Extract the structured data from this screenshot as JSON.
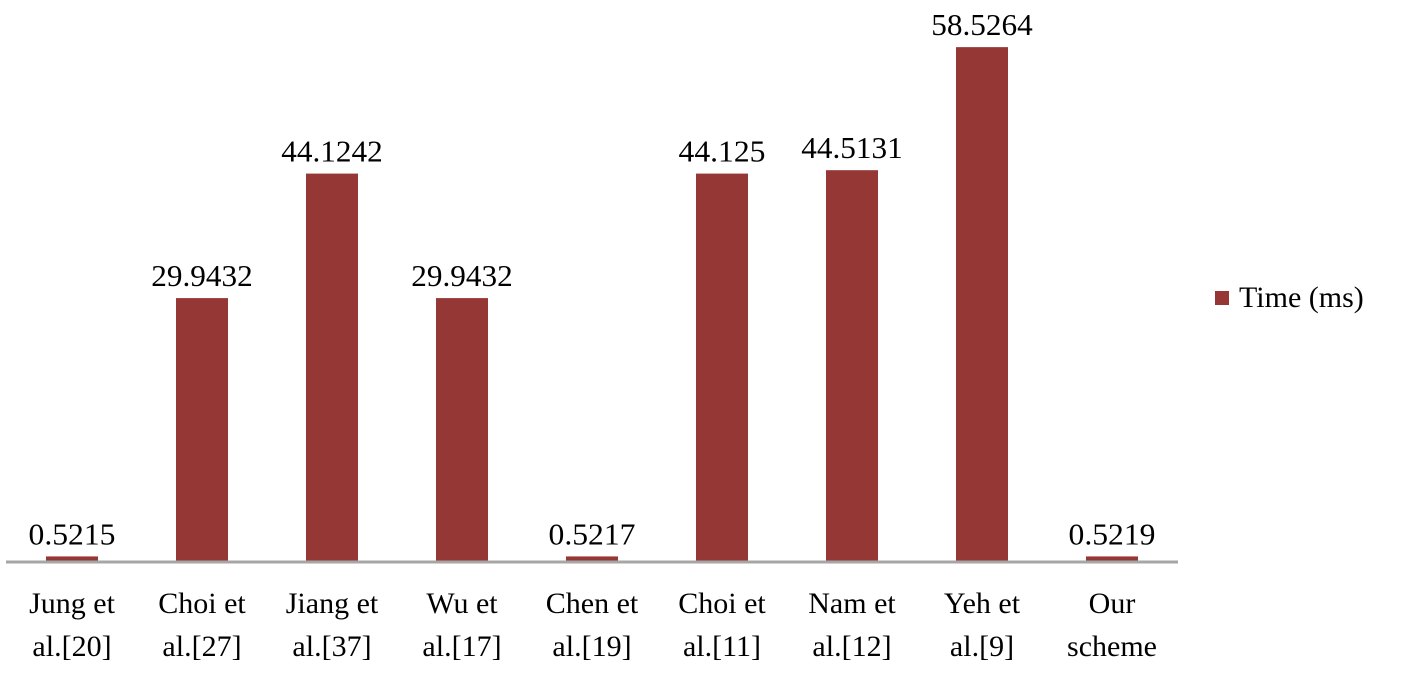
{
  "chart_data": {
    "type": "bar",
    "categories": [
      [
        "Jung et",
        "al.[20]"
      ],
      [
        "Choi et",
        "al.[27]"
      ],
      [
        "Jiang et",
        "al.[37]"
      ],
      [
        "Wu et",
        "al.[17]"
      ],
      [
        "Chen et",
        "al.[19]"
      ],
      [
        "Choi et",
        "al.[11]"
      ],
      [
        "Nam et",
        "al.[12]"
      ],
      [
        "Yeh et",
        "al.[9]"
      ],
      [
        "Our",
        "scheme"
      ]
    ],
    "series": [
      {
        "name": "Time (ms)",
        "color": "#953735",
        "values": [
          0.5215,
          29.9432,
          44.1242,
          29.9432,
          0.5217,
          44.125,
          44.5131,
          58.5264,
          0.5219
        ],
        "labels": [
          "0.5215",
          "29.9432",
          "44.1242",
          "29.9432",
          "0.5217",
          "44.125",
          "44.5131",
          "58.5264",
          "0.5219"
        ]
      }
    ],
    "title": "",
    "xlabel": "",
    "ylabel": "",
    "y_axis_visible": false,
    "grid": false,
    "legend_position": "right",
    "axis_color": "#a6a6a6"
  }
}
